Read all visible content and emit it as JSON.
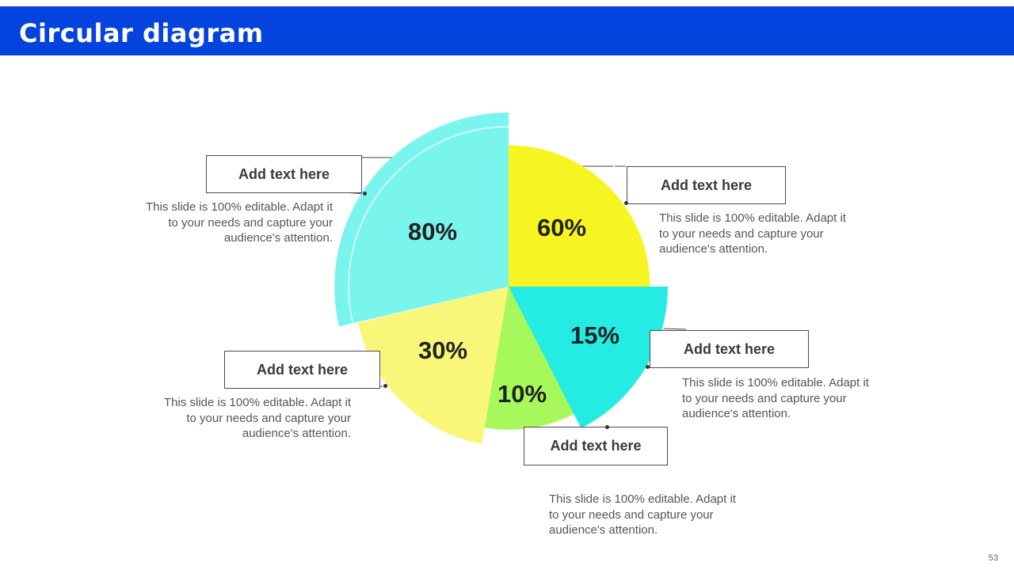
{
  "slide": {
    "title": "Circular diagram",
    "page_number": "53"
  },
  "segments": [
    {
      "id": "s80",
      "percent": "80%",
      "color": "#7af5ee",
      "label": "Add text here",
      "description": "This slide is 100% editable. Adapt it to your needs and capture your audience's attention."
    },
    {
      "id": "s60",
      "percent": "60%",
      "color": "#f6f421",
      "label": "Add text here",
      "description": "This slide is 100% editable. Adapt it to your needs and capture your audience's attention."
    },
    {
      "id": "s15",
      "percent": "15%",
      "color": "#25ece2",
      "label": "Add text here",
      "description": "This slide is 100% editable. Adapt it to your needs and capture your audience's attention."
    },
    {
      "id": "s10",
      "percent": "10%",
      "color": "#a7f85a",
      "label": "Add text here",
      "description": "This slide is 100% editable. Adapt it to your needs and capture your audience's attention."
    },
    {
      "id": "s30",
      "percent": "30%",
      "color": "#f8f77a",
      "label": "Add text here",
      "description": "This slide is 100% editable. Adapt it to your needs and capture your audience's attention."
    }
  ]
}
